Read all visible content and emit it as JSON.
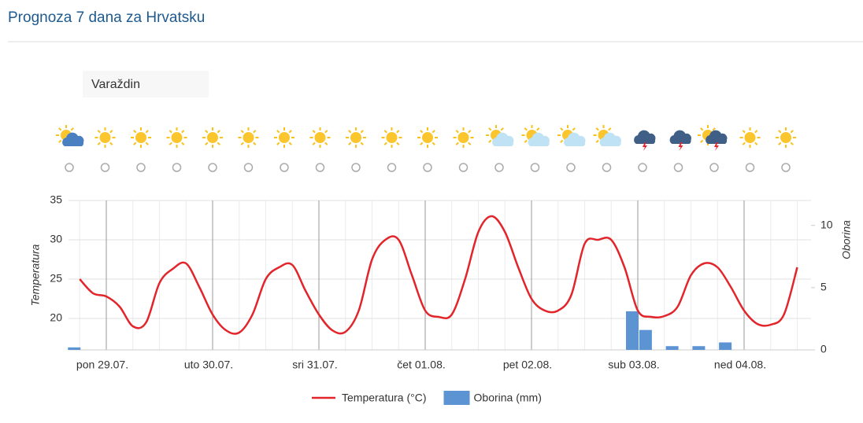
{
  "header": {
    "title": "Prognoza 7 dana za Hrvatsku",
    "location": "Varaždin"
  },
  "chart_data": {
    "type": "combo",
    "categories": [
      null,
      null,
      "pon 29.07.",
      null,
      null,
      null,
      null,
      null,
      null,
      null,
      "uto 30.07.",
      null,
      null,
      null,
      null,
      null,
      null,
      null,
      "sri 31.07.",
      null,
      null,
      null,
      null,
      null,
      null,
      null,
      "čet 01.08.",
      null,
      null,
      null,
      null,
      null,
      null,
      null,
      "pet 02.08.",
      null,
      null,
      null,
      null,
      null,
      null,
      null,
      "sub 03.08.",
      null,
      null,
      null,
      null,
      null,
      null,
      null,
      "ned 04.08.",
      null,
      null,
      null,
      null
    ],
    "series": [
      {
        "name": "Temperatura (°C)",
        "type": "line",
        "color": "#e2252b",
        "axis": "y",
        "values": [
          25,
          23.2,
          22.8,
          21.5,
          19,
          19.5,
          24.5,
          26.3,
          27,
          24,
          20.5,
          18.5,
          18.2,
          20.5,
          25,
          26.5,
          26.8,
          23.5,
          20.5,
          18.5,
          18.3,
          21,
          27.5,
          30,
          30,
          25.5,
          21,
          20.2,
          20.5,
          25,
          31,
          33,
          31,
          26.5,
          22.5,
          21,
          21,
          23,
          29.5,
          30,
          30,
          26.5,
          21,
          20.2,
          20.3,
          21.5,
          25.5,
          27,
          26.5,
          24,
          21,
          19.3,
          19.2,
          20.5,
          26.5
        ]
      },
      {
        "name": "Oborina (mm)",
        "type": "bar",
        "color": "#5b93d3",
        "axis": "y2",
        "values": [
          0.2,
          0,
          0,
          0,
          0,
          0,
          0,
          0,
          0,
          0,
          0,
          0,
          0,
          0,
          0,
          0,
          0,
          0,
          0,
          0,
          0,
          0,
          0,
          0,
          0,
          0,
          0,
          0,
          0,
          0,
          0,
          0,
          0,
          0,
          0,
          0,
          0,
          0,
          0,
          0,
          0,
          0,
          3.1,
          1.6,
          0,
          0.3,
          0,
          0.3,
          0,
          0.6,
          0,
          0,
          0,
          0,
          0
        ]
      }
    ],
    "y_label": "Temperatura",
    "y2_label": "Oborina",
    "ylim": [
      16,
      35
    ],
    "yticks": [
      20,
      25,
      30,
      35
    ],
    "y2lim": [
      0,
      12
    ],
    "y2ticks": [
      0,
      5,
      10
    ],
    "grid": true,
    "legend": "bottom"
  }
}
